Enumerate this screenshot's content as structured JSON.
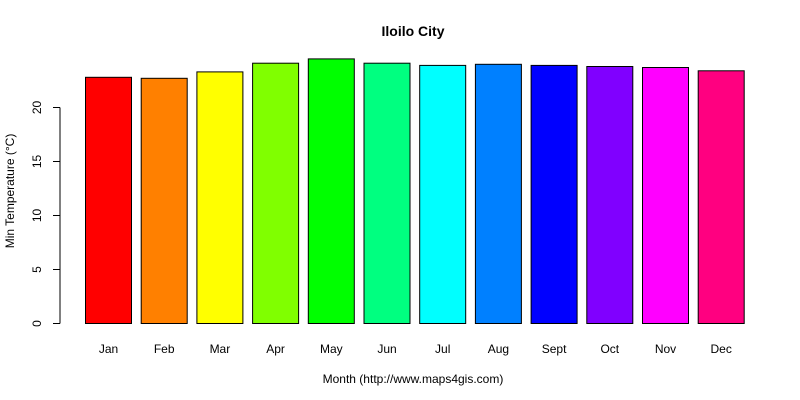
{
  "chart_data": {
    "type": "bar",
    "title": "Iloilo City",
    "xlabel": "Month (http://www.maps4gis.com)",
    "ylabel": "Min Temperature (°C)",
    "ylim": [
      0,
      25
    ],
    "yticks": [
      0,
      5,
      10,
      15,
      20
    ],
    "categories": [
      "Jan",
      "Feb",
      "Mar",
      "Apr",
      "May",
      "Jun",
      "Jul",
      "Aug",
      "Sept",
      "Oct",
      "Nov",
      "Dec"
    ],
    "values": [
      22.8,
      22.7,
      23.3,
      24.1,
      24.5,
      24.1,
      23.9,
      24.0,
      23.9,
      23.8,
      23.7,
      23.4
    ],
    "colors": [
      "#FF0000",
      "#FF8000",
      "#FFFF00",
      "#80FF00",
      "#00FF00",
      "#00FF80",
      "#00FFFF",
      "#0080FF",
      "#0000FF",
      "#8000FF",
      "#FF00FF",
      "#FF0080"
    ],
    "grid": false,
    "legend": "none"
  }
}
